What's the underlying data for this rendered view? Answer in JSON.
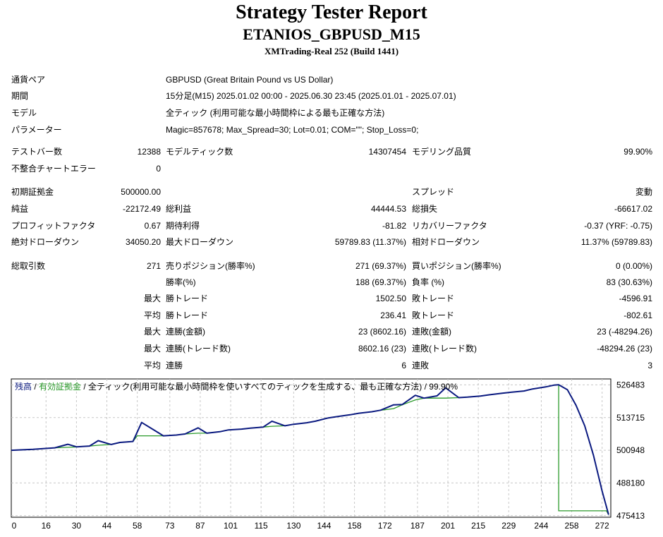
{
  "header": {
    "title": "Strategy Tester Report",
    "subtitle": "ETANIOS_GBPUSD_M15",
    "build": "XMTrading-Real 252 (Build 1441)"
  },
  "info": [
    {
      "label": "通貨ペア",
      "value": "GBPUSD (Great Britain Pound vs US Dollar)"
    },
    {
      "label": "期間",
      "value": "15分足(M15) 2025.01.02 00:00 - 2025.06.30 23:45 (2025.01.01 - 2025.07.01)"
    },
    {
      "label": "モデル",
      "value": "全ティック (利用可能な最小時間枠による最も正確な方法)"
    },
    {
      "label": "パラメーター",
      "value": "Magic=857678; Max_Spread=30; Lot=0.01; COM=\"\"; Stop_Loss=0;"
    }
  ],
  "stats": {
    "bars_label": "テストバー数",
    "bars_value": "12388",
    "ticks_label": "モデルティック数",
    "ticks_value": "14307454",
    "quality_label": "モデリング品質",
    "quality_value": "99.90%",
    "mismatch_label": "不整合チャートエラー",
    "mismatch_value": "0",
    "deposit_label": "初期証拠金",
    "deposit_value": "500000.00",
    "spread_label": "スプレッド",
    "spread_value": "変動",
    "net_label": "純益",
    "net_value": "-22172.49",
    "gross_profit_label": "総利益",
    "gross_profit_value": "44444.53",
    "gross_loss_label": "総損失",
    "gross_loss_value": "-66617.02",
    "pf_label": "プロフィットファクタ",
    "pf_value": "0.67",
    "expected_label": "期待利得",
    "expected_value": "-81.82",
    "recovery_label": "リカバリーファクタ",
    "recovery_value": "-0.37 (YRF: -0.75)",
    "abs_dd_label": "絶対ドローダウン",
    "abs_dd_value": "34050.20",
    "max_dd_label": "最大ドローダウン",
    "max_dd_value": "59789.83 (11.37%)",
    "rel_dd_label": "相対ドローダウン",
    "rel_dd_value": "11.37% (59789.83)",
    "total_trades_label": "総取引数",
    "total_trades_value": "271",
    "short_label": "売りポジション(勝率%)",
    "short_value": "271 (69.37%)",
    "long_label": "買いポジション(勝率%)",
    "long_value": "0 (0.00%)",
    "win_rate_label": "勝率(%)",
    "win_rate_value": "188 (69.37%)",
    "loss_rate_label": "負率 (%)",
    "loss_rate_value": "83 (30.63%)",
    "max_prefix": "最大",
    "avg_prefix": "平均",
    "max_win_label": "勝トレード",
    "max_win_value": "1502.50",
    "max_loss_label": "敗トレード",
    "max_loss_value": "-4596.91",
    "avg_win_label": "勝トレード",
    "avg_win_value": "236.41",
    "avg_loss_label": "敗トレード",
    "avg_loss_value": "-802.61",
    "consec_win_amt_label": "連勝(金額)",
    "consec_win_amt_value": "23 (8602.16)",
    "consec_loss_amt_label": "連敗(金額)",
    "consec_loss_amt_value": "23 (-48294.26)",
    "consec_win_cnt_label": "連勝(トレード数)",
    "consec_win_cnt_value": "8602.16 (23)",
    "consec_loss_cnt_label": "連敗(トレード数)",
    "consec_loss_cnt_value": "-48294.26 (23)",
    "avg_consec_win_label": "連勝",
    "avg_consec_win_value": "6",
    "avg_consec_loss_label": "連敗",
    "avg_consec_loss_value": "3"
  },
  "chart_legend": {
    "balance": "残高",
    "sep1": " / ",
    "equity": "有効証拠金",
    "rest": " / 全ティック(利用可能な最小時間枠を使いすべてのティックを生成する、最も正確な方法) / 99.90%"
  },
  "colors": {
    "balance": "#0b1a80",
    "equity": "#2a9a2a",
    "grid": "#c8c8c8"
  },
  "chart_data": {
    "type": "line",
    "xlabel": "",
    "ylabel": "",
    "x_ticks": [
      0,
      16,
      30,
      44,
      58,
      73,
      87,
      101,
      115,
      130,
      144,
      158,
      172,
      187,
      201,
      215,
      229,
      244,
      258,
      272
    ],
    "y_ticks": [
      526483,
      513715,
      500948,
      488180,
      475413
    ],
    "xlim": [
      0,
      276
    ],
    "ylim": [
      474800,
      528800
    ],
    "series": [
      {
        "name": "残高",
        "x": [
          0,
          10,
          20,
          26,
          30,
          36,
          40,
          46,
          50,
          56,
          60,
          66,
          70,
          76,
          80,
          86,
          90,
          96,
          100,
          106,
          110,
          116,
          120,
          126,
          130,
          136,
          140,
          146,
          150,
          156,
          160,
          166,
          170,
          176,
          180,
          186,
          190,
          196,
          200,
          206,
          210,
          216,
          220,
          226,
          230,
          236,
          240,
          246,
          250,
          252,
          256,
          260,
          264,
          268,
          272,
          275
        ],
        "y": [
          500948,
          501300,
          501900,
          503300,
          502300,
          502600,
          504700,
          503200,
          504000,
          504400,
          511800,
          508700,
          506600,
          506900,
          507300,
          509700,
          507600,
          508200,
          508900,
          509200,
          509600,
          510000,
          512300,
          510500,
          511100,
          511700,
          512300,
          513600,
          514100,
          514800,
          515400,
          516000,
          516600,
          518700,
          518800,
          522400,
          521300,
          522200,
          525300,
          521500,
          521700,
          522100,
          522600,
          523200,
          523600,
          524100,
          524900,
          525700,
          526400,
          526500,
          524600,
          518500,
          510500,
          499000,
          485000,
          475800
        ]
      },
      {
        "name": "有効証拠金",
        "x": [
          0,
          10,
          20,
          26,
          30,
          36,
          40,
          46,
          50,
          54,
          56,
          58,
          66,
          70,
          76,
          80,
          86,
          90,
          96,
          100,
          106,
          110,
          116,
          120,
          126,
          130,
          136,
          140,
          146,
          150,
          156,
          160,
          166,
          170,
          176,
          180,
          186,
          190,
          196,
          200,
          206,
          210,
          216,
          220,
          226,
          230,
          236,
          240,
          246,
          250,
          252,
          252,
          256,
          260,
          264,
          268,
          272,
          274,
          275
        ],
        "y": [
          500948,
          501300,
          501900,
          502100,
          502200,
          502600,
          502900,
          503200,
          504000,
          504300,
          504400,
          506600,
          506600,
          506600,
          506900,
          507300,
          507600,
          507600,
          508200,
          508900,
          509200,
          509600,
          510000,
          510300,
          510500,
          511100,
          511700,
          512300,
          513600,
          514100,
          514800,
          515400,
          516000,
          516600,
          517200,
          518700,
          520600,
          521300,
          521300,
          521300,
          521500,
          521700,
          522100,
          522600,
          523200,
          523600,
          524100,
          524900,
          525700,
          526400,
          526500,
          477300,
          477300,
          477300,
          477300,
          477300,
          477300,
          477300,
          475800
        ]
      }
    ]
  }
}
